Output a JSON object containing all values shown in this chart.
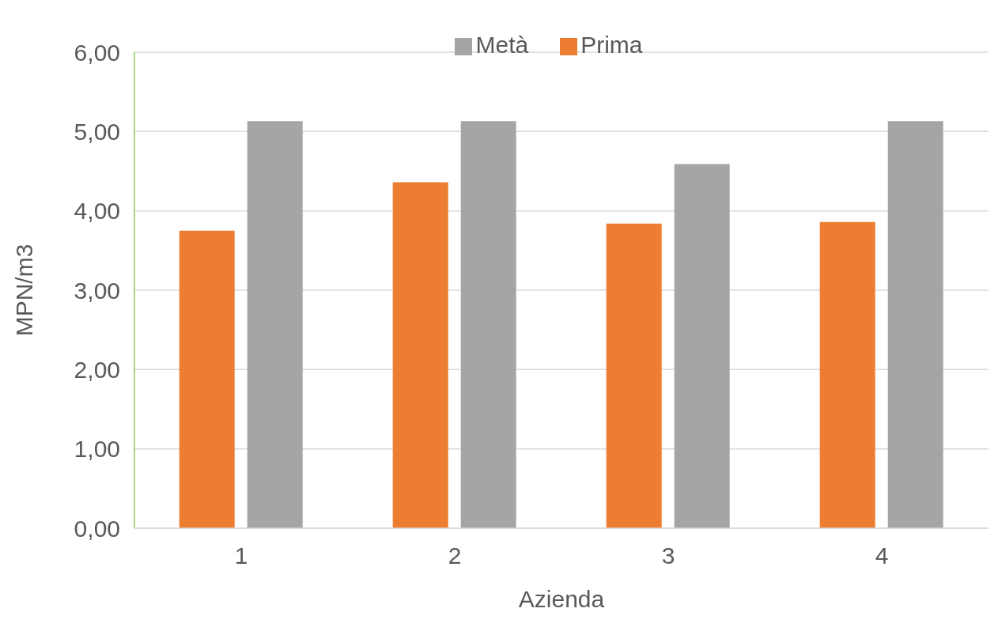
{
  "chart_data": {
    "type": "bar",
    "xlabel": "Azienda",
    "ylabel": "MPN/m3",
    "categories": [
      "1",
      "2",
      "3",
      "4"
    ],
    "series": [
      {
        "name": "Prima",
        "color": "#ed7d31",
        "values": [
          3.75,
          4.36,
          3.84,
          3.86
        ]
      },
      {
        "name": "Metà",
        "color": "#a5a5a5",
        "values": [
          5.13,
          5.13,
          4.59,
          5.13
        ]
      }
    ],
    "ylim": [
      0,
      6
    ],
    "yticks": [
      {
        "value": 0,
        "label": "0,00"
      },
      {
        "value": 1,
        "label": "1,00"
      },
      {
        "value": 2,
        "label": "2,00"
      },
      {
        "value": 3,
        "label": "3,00"
      },
      {
        "value": 4,
        "label": "4,00"
      },
      {
        "value": 5,
        "label": "5,00"
      },
      {
        "value": 6,
        "label": "6,00"
      }
    ],
    "grid": "y",
    "legend": "top"
  }
}
